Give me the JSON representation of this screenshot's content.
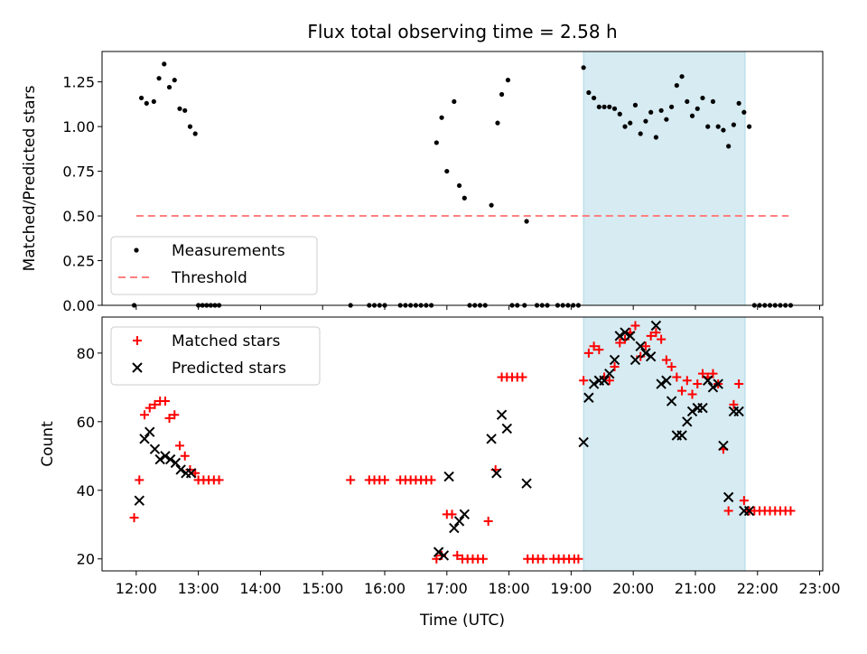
{
  "title": "Flux total observing time = 2.58 h",
  "chart_data": [
    {
      "type": "scatter",
      "panel": "top",
      "ylabel": "Matched/Predicted stars",
      "ylim": [
        0,
        1.42
      ],
      "xlim": [
        "11:27",
        "23:03"
      ],
      "yticks": [
        0.0,
        0.25,
        0.5,
        0.75,
        1.0,
        1.25
      ],
      "ytick_labels": [
        "0.00",
        "0.25",
        "0.50",
        "0.75",
        "1.00",
        "1.25"
      ],
      "grid": false,
      "legend": {
        "position": "lower-left",
        "entries": [
          "Measurements",
          "Threshold"
        ]
      },
      "shaded_span": {
        "from": "19:12",
        "to": "21:48",
        "color": "#add8e6"
      },
      "threshold": {
        "name": "Threshold",
        "y": 0.5,
        "from": "12:00",
        "to": "22:30",
        "color": "#ff7f7f"
      },
      "series": [
        {
          "name": "Measurements",
          "color": "#000000",
          "points": [
            [
              "11:58",
              0
            ],
            [
              "12:05",
              1.16
            ],
            [
              "12:10",
              1.13
            ],
            [
              "12:17",
              1.14
            ],
            [
              "12:22",
              1.27
            ],
            [
              "12:27",
              1.35
            ],
            [
              "12:32",
              1.22
            ],
            [
              "12:37",
              1.26
            ],
            [
              "12:42",
              1.1
            ],
            [
              "12:47",
              1.09
            ],
            [
              "12:52",
              1.0
            ],
            [
              "12:57",
              0.96
            ],
            [
              "13:00",
              0
            ],
            [
              "13:04",
              0
            ],
            [
              "13:08",
              0
            ],
            [
              "13:12",
              0
            ],
            [
              "13:16",
              0
            ],
            [
              "13:20",
              0
            ],
            [
              "15:27",
              0
            ],
            [
              "15:45",
              0
            ],
            [
              "15:50",
              0
            ],
            [
              "15:55",
              0
            ],
            [
              "16:00",
              0
            ],
            [
              "16:15",
              0
            ],
            [
              "16:20",
              0
            ],
            [
              "16:25",
              0
            ],
            [
              "16:30",
              0
            ],
            [
              "16:35",
              0
            ],
            [
              "16:40",
              0
            ],
            [
              "16:45",
              0
            ],
            [
              "16:50",
              0.91
            ],
            [
              "16:55",
              1.05
            ],
            [
              "17:00",
              0.75
            ],
            [
              "17:07",
              1.14
            ],
            [
              "17:12",
              0.67
            ],
            [
              "17:17",
              0.6
            ],
            [
              "17:22",
              0
            ],
            [
              "17:27",
              0
            ],
            [
              "17:32",
              0
            ],
            [
              "17:37",
              0
            ],
            [
              "17:43",
              0.56
            ],
            [
              "17:49",
              1.02
            ],
            [
              "17:53",
              1.18
            ],
            [
              "17:59",
              1.26
            ],
            [
              "18:03",
              0
            ],
            [
              "18:08",
              0
            ],
            [
              "18:15",
              0
            ],
            [
              "18:17",
              0.47
            ],
            [
              "18:27",
              0
            ],
            [
              "18:32",
              0
            ],
            [
              "18:37",
              0
            ],
            [
              "18:47",
              0
            ],
            [
              "18:52",
              0
            ],
            [
              "18:57",
              0
            ],
            [
              "19:02",
              0
            ],
            [
              "19:07",
              0
            ],
            [
              "19:12",
              1.33
            ],
            [
              "19:17",
              1.19
            ],
            [
              "19:22",
              1.16
            ],
            [
              "19:27",
              1.11
            ],
            [
              "19:32",
              1.11
            ],
            [
              "19:37",
              1.11
            ],
            [
              "19:42",
              1.1
            ],
            [
              "19:47",
              1.07
            ],
            [
              "19:52",
              1.0
            ],
            [
              "19:57",
              1.02
            ],
            [
              "20:02",
              1.12
            ],
            [
              "20:07",
              0.96
            ],
            [
              "20:12",
              1.03
            ],
            [
              "20:17",
              1.08
            ],
            [
              "20:22",
              0.94
            ],
            [
              "20:27",
              1.09
            ],
            [
              "20:32",
              1.04
            ],
            [
              "20:37",
              1.11
            ],
            [
              "20:42",
              1.23
            ],
            [
              "20:47",
              1.28
            ],
            [
              "20:52",
              1.14
            ],
            [
              "20:57",
              1.06
            ],
            [
              "21:02",
              1.1
            ],
            [
              "21:07",
              1.16
            ],
            [
              "21:12",
              1.0
            ],
            [
              "21:17",
              1.14
            ],
            [
              "21:22",
              1.0
            ],
            [
              "21:27",
              0.98
            ],
            [
              "21:32",
              0.89
            ],
            [
              "21:37",
              1.01
            ],
            [
              "21:42",
              1.13
            ],
            [
              "21:47",
              1.08
            ],
            [
              "21:52",
              1.0
            ],
            [
              "21:57",
              0
            ],
            [
              "22:02",
              0
            ],
            [
              "22:07",
              0
            ],
            [
              "22:12",
              0
            ],
            [
              "22:17",
              0
            ],
            [
              "22:22",
              0
            ],
            [
              "22:27",
              0
            ],
            [
              "22:32",
              0
            ]
          ]
        }
      ]
    },
    {
      "type": "scatter",
      "panel": "bottom",
      "xlabel": "Time (UTC)",
      "ylabel": "Count",
      "ylim": [
        16.5,
        90.5
      ],
      "xlim": [
        "11:27",
        "23:03"
      ],
      "yticks": [
        20,
        40,
        60,
        80
      ],
      "ytick_labels": [
        "20",
        "40",
        "60",
        "80"
      ],
      "xticks": [
        "12:00",
        "13:00",
        "14:00",
        "15:00",
        "16:00",
        "17:00",
        "18:00",
        "19:00",
        "20:00",
        "21:00",
        "22:00",
        "23:00"
      ],
      "grid": false,
      "legend": {
        "position": "upper-left",
        "entries": [
          "Matched stars",
          "Predicted stars"
        ]
      },
      "shaded_span": {
        "from": "19:12",
        "to": "21:48",
        "color": "#add8e6"
      },
      "series": [
        {
          "name": "Matched stars",
          "color": "#ff0000",
          "points": [
            [
              "11:58",
              32
            ],
            [
              "12:03",
              43
            ],
            [
              "12:08",
              62
            ],
            [
              "12:13",
              64
            ],
            [
              "12:18",
              65
            ],
            [
              "12:23",
              66
            ],
            [
              "12:28",
              66
            ],
            [
              "12:32",
              61
            ],
            [
              "12:37",
              62
            ],
            [
              "12:42",
              53
            ],
            [
              "12:47",
              50
            ],
            [
              "12:52",
              46
            ],
            [
              "12:57",
              45
            ],
            [
              "13:00",
              43
            ],
            [
              "13:05",
              43
            ],
            [
              "13:10",
              43
            ],
            [
              "13:15",
              43
            ],
            [
              "13:20",
              43
            ],
            [
              "15:27",
              43
            ],
            [
              "15:45",
              43
            ],
            [
              "15:50",
              43
            ],
            [
              "15:55",
              43
            ],
            [
              "16:00",
              43
            ],
            [
              "16:15",
              43
            ],
            [
              "16:20",
              43
            ],
            [
              "16:25",
              43
            ],
            [
              "16:30",
              43
            ],
            [
              "16:35",
              43
            ],
            [
              "16:40",
              43
            ],
            [
              "16:45",
              43
            ],
            [
              "16:50",
              20
            ],
            [
              "16:55",
              21
            ],
            [
              "17:00",
              33
            ],
            [
              "17:05",
              33
            ],
            [
              "17:10",
              21
            ],
            [
              "17:15",
              20
            ],
            [
              "17:20",
              20
            ],
            [
              "17:25",
              20
            ],
            [
              "17:30",
              20
            ],
            [
              "17:35",
              20
            ],
            [
              "17:40",
              31
            ],
            [
              "17:47",
              46
            ],
            [
              "17:53",
              73
            ],
            [
              "17:58",
              73
            ],
            [
              "18:03",
              73
            ],
            [
              "18:08",
              73
            ],
            [
              "18:13",
              73
            ],
            [
              "18:18",
              20
            ],
            [
              "18:23",
              20
            ],
            [
              "18:28",
              20
            ],
            [
              "18:33",
              20
            ],
            [
              "18:43",
              20
            ],
            [
              "18:48",
              20
            ],
            [
              "18:53",
              20
            ],
            [
              "18:58",
              20
            ],
            [
              "19:03",
              20
            ],
            [
              "19:07",
              20
            ],
            [
              "19:12",
              72
            ],
            [
              "19:17",
              80
            ],
            [
              "19:22",
              82
            ],
            [
              "19:27",
              81
            ],
            [
              "19:32",
              73
            ],
            [
              "19:37",
              72
            ],
            [
              "19:42",
              76
            ],
            [
              "19:47",
              83
            ],
            [
              "19:52",
              84
            ],
            [
              "19:57",
              86
            ],
            [
              "20:02",
              88
            ],
            [
              "20:07",
              79
            ],
            [
              "20:12",
              82
            ],
            [
              "20:17",
              85
            ],
            [
              "20:22",
              86
            ],
            [
              "20:27",
              84
            ],
            [
              "20:32",
              78
            ],
            [
              "20:37",
              76
            ],
            [
              "20:42",
              73
            ],
            [
              "20:47",
              69
            ],
            [
              "20:52",
              72
            ],
            [
              "20:57",
              68
            ],
            [
              "21:02",
              71
            ],
            [
              "21:07",
              74
            ],
            [
              "21:12",
              73
            ],
            [
              "21:17",
              74
            ],
            [
              "21:22",
              71
            ],
            [
              "21:27",
              52
            ],
            [
              "21:32",
              34
            ],
            [
              "21:37",
              65
            ],
            [
              "21:42",
              71
            ],
            [
              "21:47",
              37
            ],
            [
              "21:52",
              34
            ],
            [
              "21:57",
              34
            ],
            [
              "22:02",
              34
            ],
            [
              "22:07",
              34
            ],
            [
              "22:12",
              34
            ],
            [
              "22:17",
              34
            ],
            [
              "22:22",
              34
            ],
            [
              "22:27",
              34
            ],
            [
              "22:32",
              34
            ]
          ]
        },
        {
          "name": "Predicted stars",
          "color": "#000000",
          "points": [
            [
              "12:03",
              37
            ],
            [
              "12:08",
              55
            ],
            [
              "12:13",
              57
            ],
            [
              "12:18",
              52
            ],
            [
              "12:23",
              49
            ],
            [
              "12:28",
              50
            ],
            [
              "12:33",
              49
            ],
            [
              "12:38",
              48
            ],
            [
              "12:43",
              46
            ],
            [
              "12:48",
              45
            ],
            [
              "12:53",
              45
            ],
            [
              "16:52",
              22
            ],
            [
              "16:57",
              21
            ],
            [
              "17:02",
              44
            ],
            [
              "17:07",
              29
            ],
            [
              "17:12",
              31
            ],
            [
              "17:17",
              33
            ],
            [
              "17:43",
              55
            ],
            [
              "17:48",
              45
            ],
            [
              "17:53",
              62
            ],
            [
              "17:58",
              58
            ],
            [
              "18:17",
              42
            ],
            [
              "19:12",
              54
            ],
            [
              "19:17",
              67
            ],
            [
              "19:22",
              71
            ],
            [
              "19:27",
              72
            ],
            [
              "19:32",
              72
            ],
            [
              "19:37",
              74
            ],
            [
              "19:42",
              78
            ],
            [
              "19:47",
              85
            ],
            [
              "19:52",
              86
            ],
            [
              "19:57",
              85
            ],
            [
              "20:02",
              78
            ],
            [
              "20:07",
              82
            ],
            [
              "20:12",
              80
            ],
            [
              "20:17",
              79
            ],
            [
              "20:22",
              88
            ],
            [
              "20:27",
              71
            ],
            [
              "20:32",
              72
            ],
            [
              "20:37",
              66
            ],
            [
              "20:42",
              56
            ],
            [
              "20:47",
              56
            ],
            [
              "20:52",
              60
            ],
            [
              "20:57",
              63
            ],
            [
              "21:02",
              64
            ],
            [
              "21:07",
              64
            ],
            [
              "21:12",
              72
            ],
            [
              "21:17",
              70
            ],
            [
              "21:22",
              71
            ],
            [
              "21:27",
              53
            ],
            [
              "21:32",
              38
            ],
            [
              "21:37",
              63
            ],
            [
              "21:42",
              63
            ],
            [
              "21:47",
              34
            ],
            [
              "21:52",
              34
            ]
          ]
        }
      ]
    }
  ]
}
